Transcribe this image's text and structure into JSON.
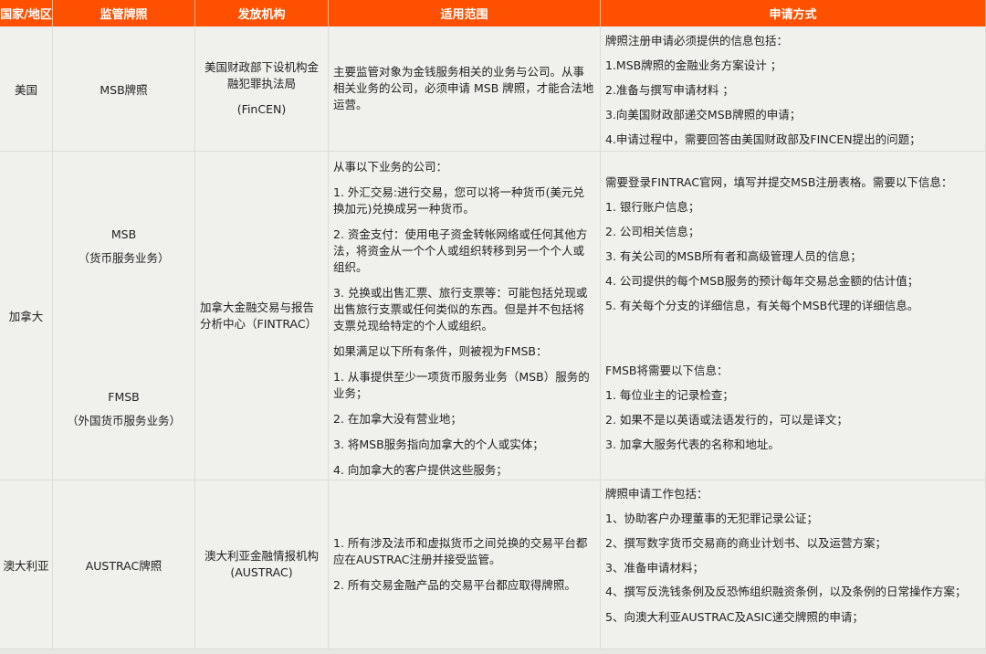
{
  "header": {
    "columns": [
      "国家/地区",
      "监管牌照",
      "发放机构",
      "适用范围",
      "申请方式"
    ],
    "color": "#ff5000"
  },
  "rows": [
    {
      "region": "美国",
      "license": "MSB牌照",
      "issuer": [
        "美国财政部下设机构金融犯罪执法局",
        "(FinCEN)"
      ],
      "scope": [
        "主要监管对象为金钱服务相关的业务与公司。从事相关业务的公司，必须申请 MSB 牌照，才能合法地运营。"
      ],
      "application": [
        "牌照注册申请必须提供的信息包括：",
        "1.MSB牌照的金融业务方案设计 ；",
        "2.准备与撰写申请材料 ；",
        "3.向美国财政部递交MSB牌照的申请；",
        "4.申请过程中，需要回答由美国财政部及FINCEN提出的问题；"
      ]
    },
    {
      "region": "加拿大",
      "license_a": [
        "MSB",
        "（货币服务业务）"
      ],
      "license_b": [
        "FMSB",
        "（外国货币服务业务）"
      ],
      "issuer": [
        "加拿大金融交易与报告分析中心（FINTRAC）"
      ],
      "scope": [
        "从事以下业务的公司：",
        "1. 外汇交易:进行交易，您可以将一种货币(美元兑换加元)兑换成另一种货币。",
        "2. 资金支付：使用电子资金转帐网络或任何其他方法，将资金从一个个人或组织转移到另一个个人或组织。",
        "3. 兑换或出售汇票、旅行支票等：可能包括兑现或出售旅行支票或任何类似的东西。但是并不包括将支票兑现给特定的个人或组织。",
        "如果满足以下所有条件，则被视为FMSB：",
        "1. 从事提供至少一项货币服务业务（MSB）服务的业务；",
        "2. 在加拿大没有营业地；",
        "3. 将MSB服务指向加拿大的个人或实体；",
        "4. 向加拿大的客户提供这些服务；"
      ],
      "application_a": [
        "需要登录FINTRAC官网，填写并提交MSB注册表格。需要以下信息：",
        "1. 银行账户信息；",
        "2. 公司相关信息；",
        "3.  有关公司的MSB所有者和高级管理人员的信息；",
        "4. 公司提供的每个MSB服务的预计每年交易总金额的估计值；",
        "5. 有关每个分支的详细信息，有关每个MSB代理的详细信息。"
      ],
      "application_b": [
        "FMSB将需要以下信息：",
        "1. 每位业主的记录检查；",
        "2. 如果不是以英语或法语发行的，可以是译文；",
        "3. 加拿大服务代表的名称和地址。"
      ]
    },
    {
      "region": "澳大利亚",
      "license": "AUSTRAC牌照",
      "issuer": [
        "澳大利亚金融情报机构",
        "(AUSTRAC)"
      ],
      "scope": [
        "1. 所有涉及法币和虚拟货币之间兑换的交易平台都应在AUSTRAC注册并接受监管。",
        "2. 所有交易金融产品的交易平台都应取得牌照。"
      ],
      "application": [
        "牌照申请工作包括：",
        "1、协助客户办理董事的无犯罪记录公证；",
        "2、撰写数字货币交易商的商业计划书、以及运营方案；",
        "3、准备申请材料；",
        "4、撰写反洗钱条例及反恐怖组织融资条例，以及条例的日常操作方案；",
        "5、向澳大利亚AUSTRAC及ASIC递交牌照的申请；"
      ]
    }
  ]
}
